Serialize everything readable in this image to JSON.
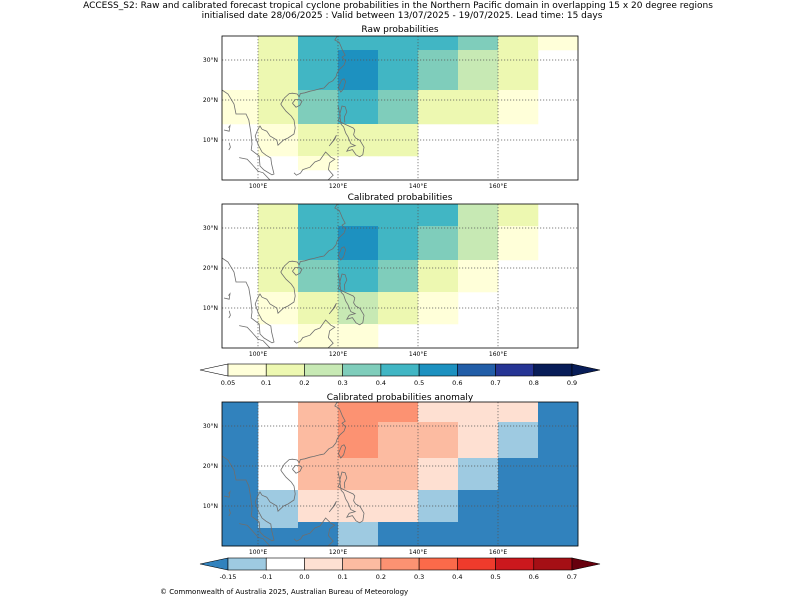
{
  "figure": {
    "title_line1": "ACCESS_S2: Raw and calibrated forecast tropical cyclone probabilities in the Northern Pacific domain in overlapping 15 x 20 degree regions",
    "title_line2": "initialised date 28/06/2025 :  Valid between 13/07/2025 - 19/07/2025. Lead time: 15 days",
    "footer": "© Commonwealth of Australia 2025, Australian Bureau of Meteorology"
  },
  "chart_data": [
    {
      "type": "heatmap",
      "title": "Raw probabilities",
      "x_range_deg_east": [
        91,
        180
      ],
      "y_range_deg_north": [
        0,
        36
      ],
      "x_ticks": [
        100,
        120,
        140,
        160
      ],
      "x_tick_labels": [
        "100°E",
        "120°E",
        "140°E",
        "160°E"
      ],
      "y_ticks": [
        10,
        20,
        30
      ],
      "y_tick_labels": [
        "10°N",
        "20°N",
        "30°N"
      ],
      "grid": true,
      "cells": [
        {
          "lon": [
            100,
            110
          ],
          "lat": [
            32.5,
            36
          ],
          "value": 0.15
        },
        {
          "lon": [
            110,
            120
          ],
          "lat": [
            32.5,
            36
          ],
          "value": 0.45
        },
        {
          "lon": [
            120,
            130
          ],
          "lat": [
            32.5,
            36
          ],
          "value": 0.45
        },
        {
          "lon": [
            130,
            140
          ],
          "lat": [
            32.5,
            36
          ],
          "value": 0.45
        },
        {
          "lon": [
            140,
            150
          ],
          "lat": [
            32.5,
            36
          ],
          "value": 0.45
        },
        {
          "lon": [
            150,
            160
          ],
          "lat": [
            32.5,
            36
          ],
          "value": 0.35
        },
        {
          "lon": [
            160,
            170
          ],
          "lat": [
            32.5,
            36
          ],
          "value": 0.15
        },
        {
          "lon": [
            170,
            180
          ],
          "lat": [
            32.5,
            36
          ],
          "value": 0.08
        },
        {
          "lon": [
            100,
            110
          ],
          "lat": [
            22.5,
            32.5
          ],
          "value": 0.15
        },
        {
          "lon": [
            110,
            120
          ],
          "lat": [
            22.5,
            32.5
          ],
          "value": 0.45
        },
        {
          "lon": [
            120,
            130
          ],
          "lat": [
            22.5,
            32.5
          ],
          "value": 0.55
        },
        {
          "lon": [
            130,
            140
          ],
          "lat": [
            22.5,
            32.5
          ],
          "value": 0.45
        },
        {
          "lon": [
            140,
            150
          ],
          "lat": [
            22.5,
            32.5
          ],
          "value": 0.35
        },
        {
          "lon": [
            150,
            160
          ],
          "lat": [
            22.5,
            32.5
          ],
          "value": 0.25
        },
        {
          "lon": [
            160,
            170
          ],
          "lat": [
            22.5,
            32.5
          ],
          "value": 0.15
        },
        {
          "lon": [
            91,
            100
          ],
          "lat": [
            14,
            22.5
          ],
          "value": 0.08
        },
        {
          "lon": [
            100,
            110
          ],
          "lat": [
            14,
            22.5
          ],
          "value": 0.15
        },
        {
          "lon": [
            110,
            120
          ],
          "lat": [
            14,
            22.5
          ],
          "value": 0.35
        },
        {
          "lon": [
            120,
            130
          ],
          "lat": [
            14,
            22.5
          ],
          "value": 0.45
        },
        {
          "lon": [
            130,
            140
          ],
          "lat": [
            14,
            22.5
          ],
          "value": 0.35
        },
        {
          "lon": [
            140,
            150
          ],
          "lat": [
            14,
            22.5
          ],
          "value": 0.15
        },
        {
          "lon": [
            150,
            160
          ],
          "lat": [
            14,
            22.5
          ],
          "value": 0.15
        },
        {
          "lon": [
            160,
            170
          ],
          "lat": [
            14,
            22.5
          ],
          "value": 0.08
        },
        {
          "lon": [
            100,
            110
          ],
          "lat": [
            6,
            14
          ],
          "value": 0.08
        },
        {
          "lon": [
            110,
            120
          ],
          "lat": [
            6,
            14
          ],
          "value": 0.15
        },
        {
          "lon": [
            120,
            130
          ],
          "lat": [
            6,
            14
          ],
          "value": 0.15
        },
        {
          "lon": [
            130,
            140
          ],
          "lat": [
            6,
            14
          ],
          "value": 0.15
        },
        {
          "lon": [
            110,
            120
          ],
          "lat": [
            2.5,
            6
          ],
          "value": 0.08
        }
      ]
    },
    {
      "type": "heatmap",
      "title": "Calibrated probabilities",
      "x_range_deg_east": [
        91,
        180
      ],
      "y_range_deg_north": [
        0,
        36
      ],
      "x_ticks": [
        100,
        120,
        140,
        160
      ],
      "x_tick_labels": [
        "100°E",
        "120°E",
        "140°E",
        "160°E"
      ],
      "y_ticks": [
        10,
        20,
        30
      ],
      "y_tick_labels": [
        "10°N",
        "20°N",
        "30°N"
      ],
      "grid": true,
      "cells": [
        {
          "lon": [
            100,
            110
          ],
          "lat": [
            30.5,
            36
          ],
          "value": 0.15
        },
        {
          "lon": [
            110,
            120
          ],
          "lat": [
            30.5,
            36
          ],
          "value": 0.45
        },
        {
          "lon": [
            120,
            130
          ],
          "lat": [
            30.5,
            36
          ],
          "value": 0.45
        },
        {
          "lon": [
            130,
            140
          ],
          "lat": [
            30.5,
            36
          ],
          "value": 0.45
        },
        {
          "lon": [
            140,
            150
          ],
          "lat": [
            30.5,
            36
          ],
          "value": 0.45
        },
        {
          "lon": [
            150,
            160
          ],
          "lat": [
            30.5,
            36
          ],
          "value": 0.25
        },
        {
          "lon": [
            160,
            170
          ],
          "lat": [
            30.5,
            36
          ],
          "value": 0.15
        },
        {
          "lon": [
            100,
            110
          ],
          "lat": [
            22,
            30.5
          ],
          "value": 0.15
        },
        {
          "lon": [
            110,
            120
          ],
          "lat": [
            22,
            30.5
          ],
          "value": 0.45
        },
        {
          "lon": [
            120,
            130
          ],
          "lat": [
            22,
            30.5
          ],
          "value": 0.55
        },
        {
          "lon": [
            130,
            140
          ],
          "lat": [
            22,
            30.5
          ],
          "value": 0.45
        },
        {
          "lon": [
            140,
            150
          ],
          "lat": [
            22,
            30.5
          ],
          "value": 0.35
        },
        {
          "lon": [
            150,
            160
          ],
          "lat": [
            22,
            30.5
          ],
          "value": 0.25
        },
        {
          "lon": [
            160,
            170
          ],
          "lat": [
            22,
            30.5
          ],
          "value": 0.08
        },
        {
          "lon": [
            100,
            110
          ],
          "lat": [
            14,
            22
          ],
          "value": 0.15
        },
        {
          "lon": [
            110,
            120
          ],
          "lat": [
            14,
            22
          ],
          "value": 0.35
        },
        {
          "lon": [
            120,
            130
          ],
          "lat": [
            14,
            22
          ],
          "value": 0.45
        },
        {
          "lon": [
            130,
            140
          ],
          "lat": [
            14,
            22
          ],
          "value": 0.35
        },
        {
          "lon": [
            140,
            150
          ],
          "lat": [
            14,
            22
          ],
          "value": 0.15
        },
        {
          "lon": [
            150,
            160
          ],
          "lat": [
            14,
            22
          ],
          "value": 0.08
        },
        {
          "lon": [
            100,
            110
          ],
          "lat": [
            6,
            14
          ],
          "value": 0.08
        },
        {
          "lon": [
            110,
            120
          ],
          "lat": [
            6,
            14
          ],
          "value": 0.15
        },
        {
          "lon": [
            120,
            130
          ],
          "lat": [
            6,
            14
          ],
          "value": 0.25
        },
        {
          "lon": [
            130,
            140
          ],
          "lat": [
            6,
            14
          ],
          "value": 0.15
        },
        {
          "lon": [
            140,
            150
          ],
          "lat": [
            6,
            14
          ],
          "value": 0.08
        },
        {
          "lon": [
            110,
            120
          ],
          "lat": [
            0,
            6
          ],
          "value": 0.08
        },
        {
          "lon": [
            120,
            130
          ],
          "lat": [
            0,
            6
          ],
          "value": 0.08
        }
      ]
    },
    {
      "type": "heatmap",
      "title": "Calibrated probabilities anomaly",
      "x_range_deg_east": [
        91,
        180
      ],
      "y_range_deg_north": [
        0,
        36
      ],
      "x_ticks": [
        100,
        120,
        140,
        160
      ],
      "x_tick_labels": [
        "100°E",
        "120°E",
        "140°E",
        "160°E"
      ],
      "y_ticks": [
        10,
        20,
        30
      ],
      "y_tick_labels": [
        "10°N",
        "20°N",
        "30°N"
      ],
      "grid": true,
      "cells": [
        {
          "lon": [
            91,
            100
          ],
          "lat": [
            0,
            36
          ],
          "value": -0.2
        },
        {
          "lon": [
            100,
            110
          ],
          "lat": [
            4.5,
            14
          ],
          "value": -0.12
        },
        {
          "lon": [
            100,
            110
          ],
          "lat": [
            0,
            4.5
          ],
          "value": -0.2
        },
        {
          "lon": [
            110,
            120
          ],
          "lat": [
            31,
            36
          ],
          "value": 0.15
        },
        {
          "lon": [
            120,
            130
          ],
          "lat": [
            31,
            36
          ],
          "value": 0.25
        },
        {
          "lon": [
            130,
            140
          ],
          "lat": [
            31,
            36
          ],
          "value": 0.25
        },
        {
          "lon": [
            140,
            150
          ],
          "lat": [
            31,
            36
          ],
          "value": 0.05
        },
        {
          "lon": [
            150,
            160
          ],
          "lat": [
            31,
            36
          ],
          "value": 0.05
        },
        {
          "lon": [
            160,
            170
          ],
          "lat": [
            31,
            36
          ],
          "value": 0
        },
        {
          "lon": [
            170,
            180
          ],
          "lat": [
            31,
            36
          ],
          "value": -0.2
        },
        {
          "lon": [
            110,
            120
          ],
          "lat": [
            22,
            31
          ],
          "value": 0.15
        },
        {
          "lon": [
            120,
            130
          ],
          "lat": [
            22,
            31
          ],
          "value": 0.25
        },
        {
          "lon": [
            130,
            140
          ],
          "lat": [
            22,
            31
          ],
          "value": 0.15
        },
        {
          "lon": [
            140,
            150
          ],
          "lat": [
            22,
            31
          ],
          "value": 0.15
        },
        {
          "lon": [
            150,
            160
          ],
          "lat": [
            22,
            31
          ],
          "value": 0.05
        },
        {
          "lon": [
            160,
            170
          ],
          "lat": [
            22,
            31
          ],
          "value": -0.12
        },
        {
          "lon": [
            170,
            180
          ],
          "lat": [
            22,
            31
          ],
          "value": -0.2
        },
        {
          "lon": [
            110,
            120
          ],
          "lat": [
            14,
            22
          ],
          "value": 0.15
        },
        {
          "lon": [
            120,
            130
          ],
          "lat": [
            14,
            22
          ],
          "value": 0.15
        },
        {
          "lon": [
            130,
            140
          ],
          "lat": [
            14,
            22
          ],
          "value": 0.15
        },
        {
          "lon": [
            140,
            150
          ],
          "lat": [
            14,
            22
          ],
          "value": 0
        },
        {
          "lon": [
            150,
            160
          ],
          "lat": [
            14,
            22
          ],
          "value": -0.12
        },
        {
          "lon": [
            160,
            180
          ],
          "lat": [
            14,
            22
          ],
          "value": -0.2
        },
        {
          "lon": [
            110,
            120
          ],
          "lat": [
            6,
            14
          ],
          "value": 0
        },
        {
          "lon": [
            120,
            130
          ],
          "lat": [
            6,
            14
          ],
          "value": 0.05
        },
        {
          "lon": [
            130,
            140
          ],
          "lat": [
            6,
            14
          ],
          "value": 0
        },
        {
          "lon": [
            140,
            150
          ],
          "lat": [
            6,
            14
          ],
          "value": -0.12
        },
        {
          "lon": [
            150,
            180
          ],
          "lat": [
            6,
            14
          ],
          "value": -0.2
        },
        {
          "lon": [
            110,
            120
          ],
          "lat": [
            0,
            6
          ],
          "value": -0.2
        },
        {
          "lon": [
            120,
            130
          ],
          "lat": [
            0,
            6
          ],
          "value": -0.12
        },
        {
          "lon": [
            130,
            180
          ],
          "lat": [
            0,
            6
          ],
          "value": -0.2
        }
      ]
    }
  ],
  "colorbars": [
    {
      "name": "probability",
      "bounds": [
        0.05,
        0.1,
        0.2,
        0.3,
        0.4,
        0.5,
        0.6,
        0.7,
        0.8,
        0.9
      ],
      "labels": [
        "0.05",
        "0.1",
        "0.2",
        "0.3",
        "0.4",
        "0.5",
        "0.6",
        "0.7",
        "0.8",
        "0.9"
      ],
      "colors": [
        "#ffffd9",
        "#edf8b1",
        "#c7e9b4",
        "#7fcdbb",
        "#41b6c4",
        "#1d91c0",
        "#225ea8",
        "#253494",
        "#081d58"
      ],
      "under_color": "#ffffff",
      "over_color": "#081d58"
    },
    {
      "name": "anomaly",
      "bounds": [
        -0.15,
        -0.1,
        0.0,
        0.1,
        0.2,
        0.3,
        0.4,
        0.5,
        0.6,
        0.7
      ],
      "labels": [
        "-0.15",
        "-0.1",
        "0.0",
        "0.1",
        "0.2",
        "0.3",
        "0.4",
        "0.5",
        "0.6",
        "0.7"
      ],
      "colors": [
        "#9ecae1",
        "#ffffff",
        "#fee0d2",
        "#fcbba1",
        "#fc9272",
        "#fb6a4a",
        "#ef3b2c",
        "#cb181d",
        "#a50f15"
      ],
      "under_color": "#3182bd",
      "over_color": "#67000d"
    }
  ]
}
